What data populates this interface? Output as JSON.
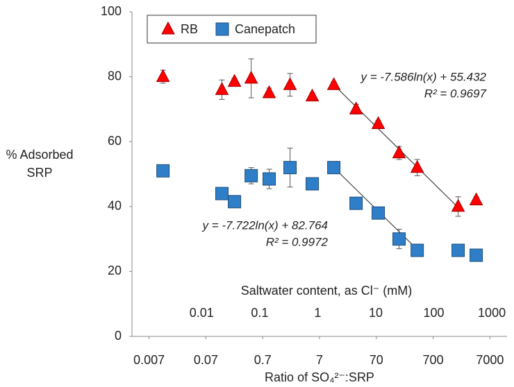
{
  "chart_data": {
    "type": "scatter",
    "ylabel": "% Adsorbed SRP",
    "xlabel": "Ratio of SO₄²⁻:SRP",
    "x2label": "Saltwater content, as Cl⁻ (mM)",
    "xscale": "log",
    "xlim": [
      0.0035,
      14000
    ],
    "xticks": [
      0.007,
      0.07,
      0.7,
      7,
      70,
      700,
      7000
    ],
    "x2lim": [
      0.00063,
      1830
    ],
    "x2ticks": [
      0.01,
      0.1,
      1,
      10,
      100,
      1000
    ],
    "ylim": [
      0,
      100
    ],
    "yticks": [
      0,
      20,
      40,
      60,
      80,
      100
    ],
    "grid": false,
    "legend": "top-left",
    "series": [
      {
        "name": "RB",
        "color": "#ff0000",
        "marker": "triangle",
        "x": [
          0.0123,
          0.134,
          0.223,
          0.439,
          0.91,
          2.12,
          5.22,
          12.5,
          30.8,
          75.7,
          176,
          367,
          1928,
          4010
        ],
        "values": [
          80,
          76,
          78.5,
          79.5,
          75,
          77.5,
          74,
          77.5,
          70,
          65.5,
          56.5,
          52,
          40,
          42
        ],
        "errors": [
          2,
          3,
          1,
          6,
          1.5,
          3.5,
          1,
          1,
          1.5,
          1,
          2,
          2.5,
          3,
          1
        ]
      },
      {
        "name": "Canepatch",
        "color": "#2e7ec8",
        "marker": "square",
        "x": [
          0.0123,
          0.134,
          0.223,
          0.439,
          0.91,
          2.12,
          5.22,
          12.5,
          30.8,
          75.7,
          176,
          367,
          1928,
          4010
        ],
        "values": [
          51,
          44,
          41.5,
          49.5,
          48.5,
          52,
          47,
          52,
          41,
          38,
          30,
          26.5,
          26.5,
          25
        ],
        "errors": [
          1,
          0.5,
          0.5,
          2.5,
          3,
          6,
          1,
          0.5,
          1,
          1,
          3,
          1,
          0.5,
          0.5
        ]
      }
    ],
    "trendlines": [
      {
        "x": [
          12.5,
          1928
        ],
        "values": [
          77.5,
          39.7
        ],
        "equation": "y = -7.586ln(x) + 55.432",
        "r2": "R² = 0.9697"
      },
      {
        "x": [
          12.5,
          367
        ],
        "values": [
          52,
          26.8
        ],
        "equation": "y = -7.722ln(x) + 82.764",
        "r2": "R² = 0.9972"
      }
    ]
  }
}
